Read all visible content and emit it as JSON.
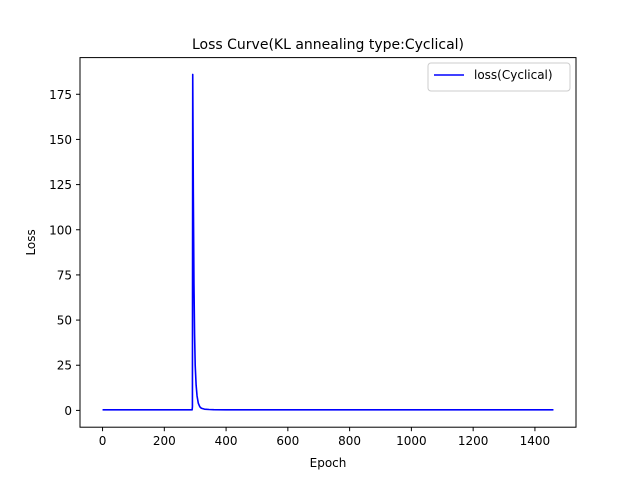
{
  "chart_data": {
    "type": "line",
    "title": "Loss Curve(KL annealing type:Cyclical)",
    "xlabel": "Epoch",
    "ylabel": "Loss",
    "xlim": [
      -73,
      1533
    ],
    "ylim": [
      -9.3,
      195.3
    ],
    "xticks": [
      0,
      200,
      400,
      600,
      800,
      1000,
      1200,
      1400
    ],
    "yticks": [
      0,
      25,
      50,
      75,
      100,
      125,
      150,
      175
    ],
    "grid": false,
    "legend_position": "top-right",
    "series": [
      {
        "name": "loss(Cyclical)",
        "color": "#0000ff",
        "x": [
          0,
          100,
          200,
          290,
          291,
          292,
          294,
          296,
          298,
          300,
          303,
          306,
          310,
          315,
          320,
          330,
          345,
          360,
          400,
          600,
          800,
          1000,
          1200,
          1400,
          1460
        ],
        "y": [
          0.3,
          0.3,
          0.3,
          0.3,
          2.0,
          186.0,
          120.0,
          70.0,
          42.0,
          25.0,
          14.0,
          8.0,
          4.0,
          2.0,
          1.2,
          0.7,
          0.5,
          0.4,
          0.3,
          0.3,
          0.3,
          0.3,
          0.3,
          0.3,
          0.3
        ]
      }
    ]
  }
}
